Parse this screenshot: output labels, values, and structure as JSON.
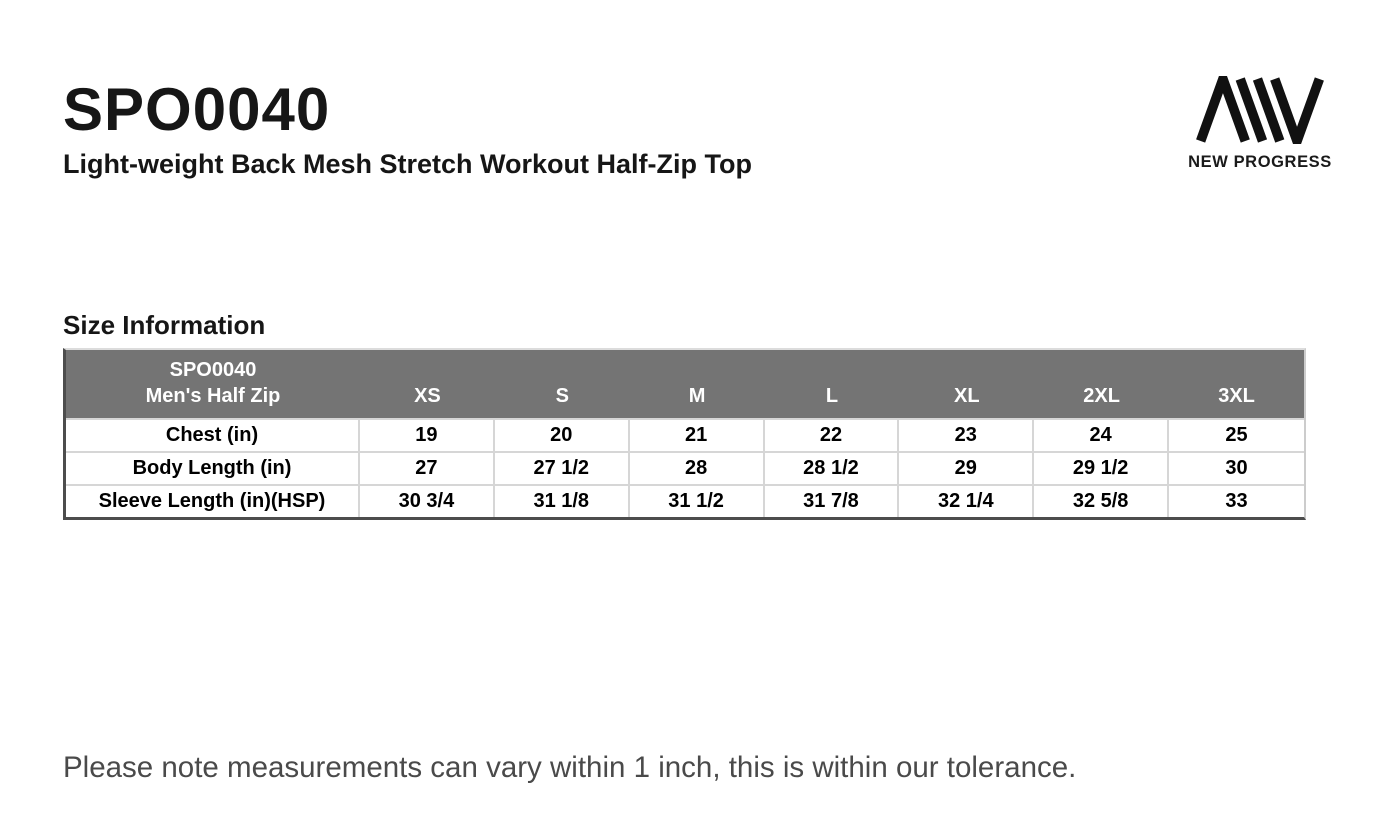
{
  "page": {
    "product_code": "SPO0040",
    "product_name": "Light-weight Back Mesh Stretch Workout Half-Zip Top",
    "section_title": "Size Information",
    "note": "Please note measurements can vary within 1 inch, this is within our tolerance."
  },
  "logo": {
    "brand": "NEW PROGRESS",
    "mark": "aw-monogram"
  },
  "size_table": {
    "header": {
      "line1": "SPO0040",
      "line2": "Men's Half Zip"
    },
    "columns": [
      "XS",
      "S",
      "M",
      "L",
      "XL",
      "2XL",
      "3XL"
    ],
    "rows": [
      {
        "label": "Chest (in)",
        "values": [
          "19",
          "20",
          "21",
          "22",
          "23",
          "24",
          "25"
        ]
      },
      {
        "label": "Body Length (in)",
        "values": [
          "27",
          "27 1/2",
          "28",
          "28 1/2",
          "29",
          "29 1/2",
          "30"
        ]
      },
      {
        "label": "Sleeve Length (in)(HSP)",
        "values": [
          "30 3/4",
          "31 1/8",
          "31 1/2",
          "31 7/8",
          "32 1/4",
          "32 5/8",
          "33"
        ]
      }
    ],
    "colors": {
      "header_bg": "#747474",
      "header_text": "#ffffff",
      "grid_line": "#d6d6d6",
      "outer_border": "#4d4d4d"
    }
  }
}
